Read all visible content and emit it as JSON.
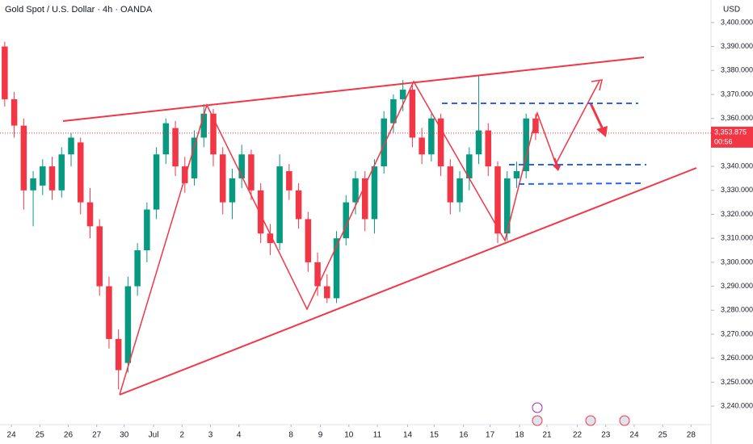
{
  "chart_data": {
    "type": "candlestick",
    "title": "Gold Spot / U.S. Dollar · 4h · OANDA",
    "currency": "USD",
    "last_price_label": "3,353.875",
    "countdown": "00:56",
    "up_color": "#089981",
    "down_color": "#f23645",
    "open": [
      3390,
      3368,
      3357,
      3330,
      3332,
      3340,
      3330,
      3345,
      3350,
      3325,
      3315,
      3290,
      3268,
      3258,
      3290,
      3305,
      3322,
      3345,
      3356,
      3340,
      3335,
      3352,
      3362,
      3345,
      3325,
      3335,
      3345,
      3330,
      3312,
      3308,
      3338,
      3330,
      3318,
      3300,
      3290,
      3285,
      3310,
      3325,
      3335,
      3318,
      3340,
      3358,
      3368,
      3372,
      3352,
      3345,
      3360,
      3340,
      3325,
      3335,
      3345,
      3355,
      3340,
      3312,
      3335,
      3338,
      3360
    ],
    "high": [
      3392,
      3371,
      3360,
      3338,
      3343,
      3344,
      3348,
      3354,
      3352,
      3331,
      3318,
      3294,
      3272,
      3294,
      3308,
      3325,
      3348,
      3360,
      3359,
      3344,
      3355,
      3366,
      3364,
      3348,
      3339,
      3349,
      3347,
      3333,
      3316,
      3345,
      3341,
      3333,
      3321,
      3304,
      3295,
      3313,
      3328,
      3338,
      3338,
      3343,
      3363,
      3370,
      3376,
      3374,
      3356,
      3362,
      3362,
      3343,
      3338,
      3348,
      3378,
      3358,
      3342,
      3338,
      3342,
      3362,
      3362
    ],
    "low": [
      3365,
      3352,
      3322,
      3315,
      3328,
      3326,
      3327,
      3340,
      3320,
      3310,
      3286,
      3264,
      3247,
      3254,
      3286,
      3300,
      3318,
      3341,
      3336,
      3329,
      3332,
      3348,
      3340,
      3320,
      3318,
      3331,
      3326,
      3308,
      3303,
      3305,
      3326,
      3314,
      3296,
      3286,
      3283,
      3283,
      3307,
      3320,
      3313,
      3312,
      3337,
      3354,
      3363,
      3348,
      3341,
      3342,
      3336,
      3320,
      3321,
      3330,
      3341,
      3336,
      3308,
      3309,
      3331,
      3335,
      3351
    ],
    "close": [
      3368,
      3357,
      3330,
      3335,
      3340,
      3330,
      3345,
      3352,
      3325,
      3315,
      3290,
      3268,
      3255,
      3290,
      3305,
      3322,
      3345,
      3358,
      3340,
      3333,
      3352,
      3362,
      3345,
      3325,
      3335,
      3345,
      3330,
      3312,
      3308,
      3340,
      3330,
      3318,
      3300,
      3290,
      3285,
      3310,
      3325,
      3335,
      3318,
      3340,
      3360,
      3368,
      3372,
      3352,
      3345,
      3360,
      3340,
      3325,
      3335,
      3345,
      3355,
      3340,
      3312,
      3335,
      3338,
      3360,
      3353.875
    ],
    "xlim": [
      -0.5,
      74.5
    ],
    "xticks": [
      {
        "value": 0.7,
        "label": "24"
      },
      {
        "value": 3.7,
        "label": "25"
      },
      {
        "value": 6.7,
        "label": "26"
      },
      {
        "value": 9.7,
        "label": "27"
      },
      {
        "value": 12.6,
        "label": "30"
      },
      {
        "value": 15.7,
        "label": "Jul"
      },
      {
        "value": 18.7,
        "label": "2"
      },
      {
        "value": 21.7,
        "label": "3"
      },
      {
        "value": 24.7,
        "label": "4"
      },
      {
        "value": 30.2,
        "label": "8"
      },
      {
        "value": 33.3,
        "label": "9"
      },
      {
        "value": 36.3,
        "label": "10"
      },
      {
        "value": 39.3,
        "label": "11"
      },
      {
        "value": 42.5,
        "label": "14"
      },
      {
        "value": 45.3,
        "label": "15"
      },
      {
        "value": 48.4,
        "label": "16"
      },
      {
        "value": 51.2,
        "label": "17"
      },
      {
        "value": 54.3,
        "label": "18"
      },
      {
        "value": 57.2,
        "label": "21"
      },
      {
        "value": 60.4,
        "label": "22"
      },
      {
        "value": 63.4,
        "label": "23"
      },
      {
        "value": 66.4,
        "label": "24"
      },
      {
        "value": 69.4,
        "label": "25"
      },
      {
        "value": 72.4,
        "label": "28"
      }
    ],
    "ylim": [
      3234.3,
      3409.4
    ],
    "yticks": [
      {
        "value": 3240,
        "label": "3,240.000"
      },
      {
        "value": 3250,
        "label": "3,250.000"
      },
      {
        "value": 3260,
        "label": "3,260.000"
      },
      {
        "value": 3270,
        "label": "3,270.000"
      },
      {
        "value": 3280,
        "label": "3,280.000"
      },
      {
        "value": 3290,
        "label": "3,290.000"
      },
      {
        "value": 3300,
        "label": "3,300.000"
      },
      {
        "value": 3310,
        "label": "3,310.000"
      },
      {
        "value": 3320,
        "label": "3,320.000"
      },
      {
        "value": 3330,
        "label": "3,330.000"
      },
      {
        "value": 3340,
        "label": "3,340.000"
      },
      {
        "value": 3350,
        "label": "3,350.000"
      },
      {
        "value": 3360,
        "label": "3,360.000"
      },
      {
        "value": 3370,
        "label": "3,370.000"
      },
      {
        "value": 3380,
        "label": "3,380.000"
      },
      {
        "value": 3390,
        "label": "3,390.000"
      },
      {
        "value": 3400,
        "label": "3,400.000"
      }
    ]
  }
}
